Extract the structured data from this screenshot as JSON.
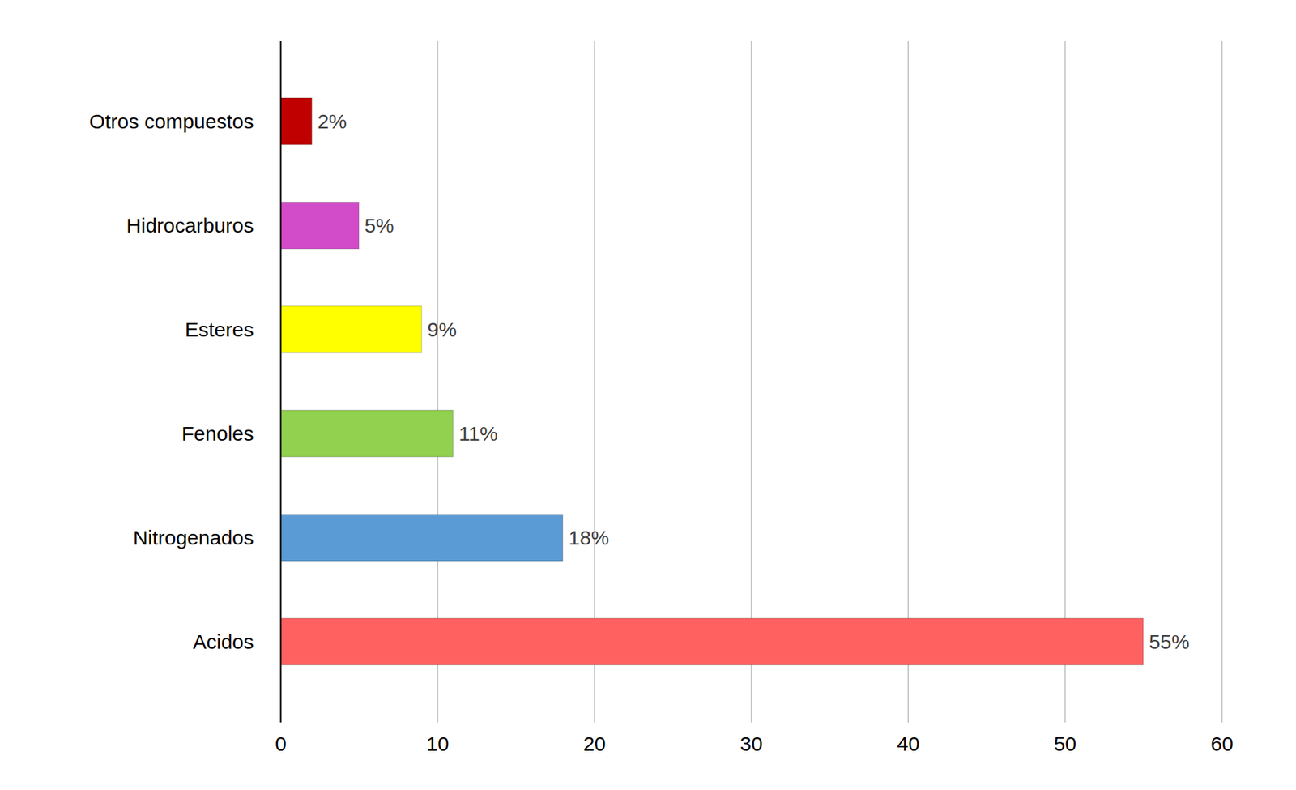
{
  "chart_data": {
    "type": "bar",
    "orientation": "horizontal",
    "categories": [
      "Otros compuestos",
      "Hidrocarburos",
      "Esteres",
      "Fenoles",
      "Nitrogenados",
      "Acidos"
    ],
    "values": [
      2,
      5,
      9,
      11,
      18,
      55
    ],
    "value_labels": [
      "2%",
      "5%",
      "9%",
      "11%",
      "18%",
      "55%"
    ],
    "colors": [
      "#c00000",
      "#d24bc8",
      "#ffff00",
      "#92d050",
      "#5b9bd5",
      "#ff6161"
    ],
    "xlim": [
      0,
      60
    ],
    "xticks": [
      0,
      10,
      20,
      30,
      40,
      50,
      60
    ],
    "grid": true,
    "data_labels": true
  }
}
